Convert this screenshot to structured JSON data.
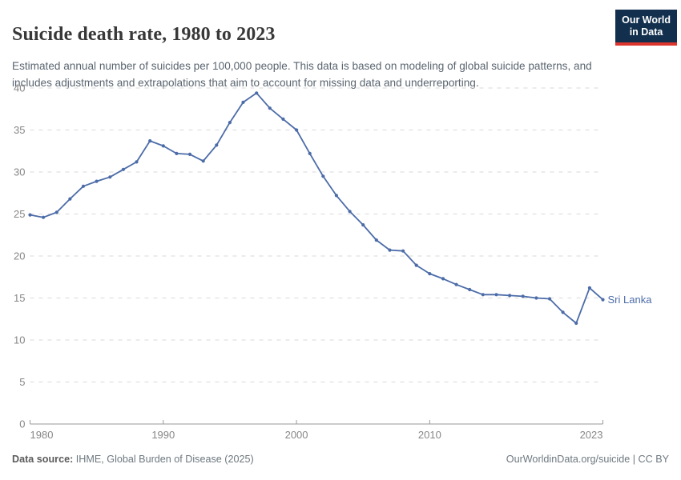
{
  "header": {
    "title": "Suicide death rate, 1980 to 2023",
    "subtitle": "Estimated annual number of suicides per 100,000 people. This data is based on modeling of global suicide patterns, and includes adjustments and extrapolations that aim to account for missing data and underreporting.",
    "logo": {
      "line1": "Our World",
      "line2": "in Data"
    }
  },
  "colors": {
    "line": "#4c6ca8",
    "grid": "#dadada",
    "axis": "#9a9a9a",
    "tick_label": "#878787",
    "logo_bg": "#12304e",
    "logo_accent": "#dc352d"
  },
  "chart_data": {
    "type": "line",
    "title": "Suicide death rate, 1980 to 2023",
    "xlabel": "",
    "ylabel": "",
    "xlim": [
      1980,
      2023
    ],
    "ylim": [
      0,
      40
    ],
    "x_ticks": [
      1980,
      1990,
      2000,
      2010,
      2023
    ],
    "y_ticks": [
      0,
      5,
      10,
      15,
      20,
      25,
      30,
      35,
      40
    ],
    "grid": "horizontal-dashed",
    "legend_position": "end-of-line-label",
    "series": [
      {
        "name": "Sri Lanka",
        "x": [
          1980,
          1981,
          1982,
          1983,
          1984,
          1985,
          1986,
          1987,
          1988,
          1989,
          1990,
          1991,
          1992,
          1993,
          1994,
          1995,
          1996,
          1997,
          1998,
          1999,
          2000,
          2001,
          2002,
          2003,
          2004,
          2005,
          2006,
          2007,
          2008,
          2009,
          2010,
          2011,
          2012,
          2013,
          2014,
          2015,
          2016,
          2017,
          2018,
          2019,
          2020,
          2021,
          2022,
          2023
        ],
        "values": [
          24.9,
          24.6,
          25.2,
          26.8,
          28.3,
          28.9,
          29.4,
          30.3,
          31.2,
          33.7,
          33.1,
          32.2,
          32.1,
          31.3,
          33.2,
          35.9,
          38.3,
          39.4,
          37.6,
          36.3,
          35.0,
          32.2,
          29.5,
          27.2,
          25.3,
          23.7,
          21.9,
          20.7,
          20.6,
          18.9,
          17.9,
          17.3,
          16.6,
          16.0,
          15.4,
          15.4,
          15.3,
          15.2,
          15.0,
          14.9,
          13.3,
          12.0,
          16.2,
          14.8
        ]
      }
    ]
  },
  "footer": {
    "source_label": "Data source:",
    "source_text": " IHME, Global Burden of Disease (2025)",
    "credit": "OurWorldinData.org/suicide | CC BY"
  }
}
